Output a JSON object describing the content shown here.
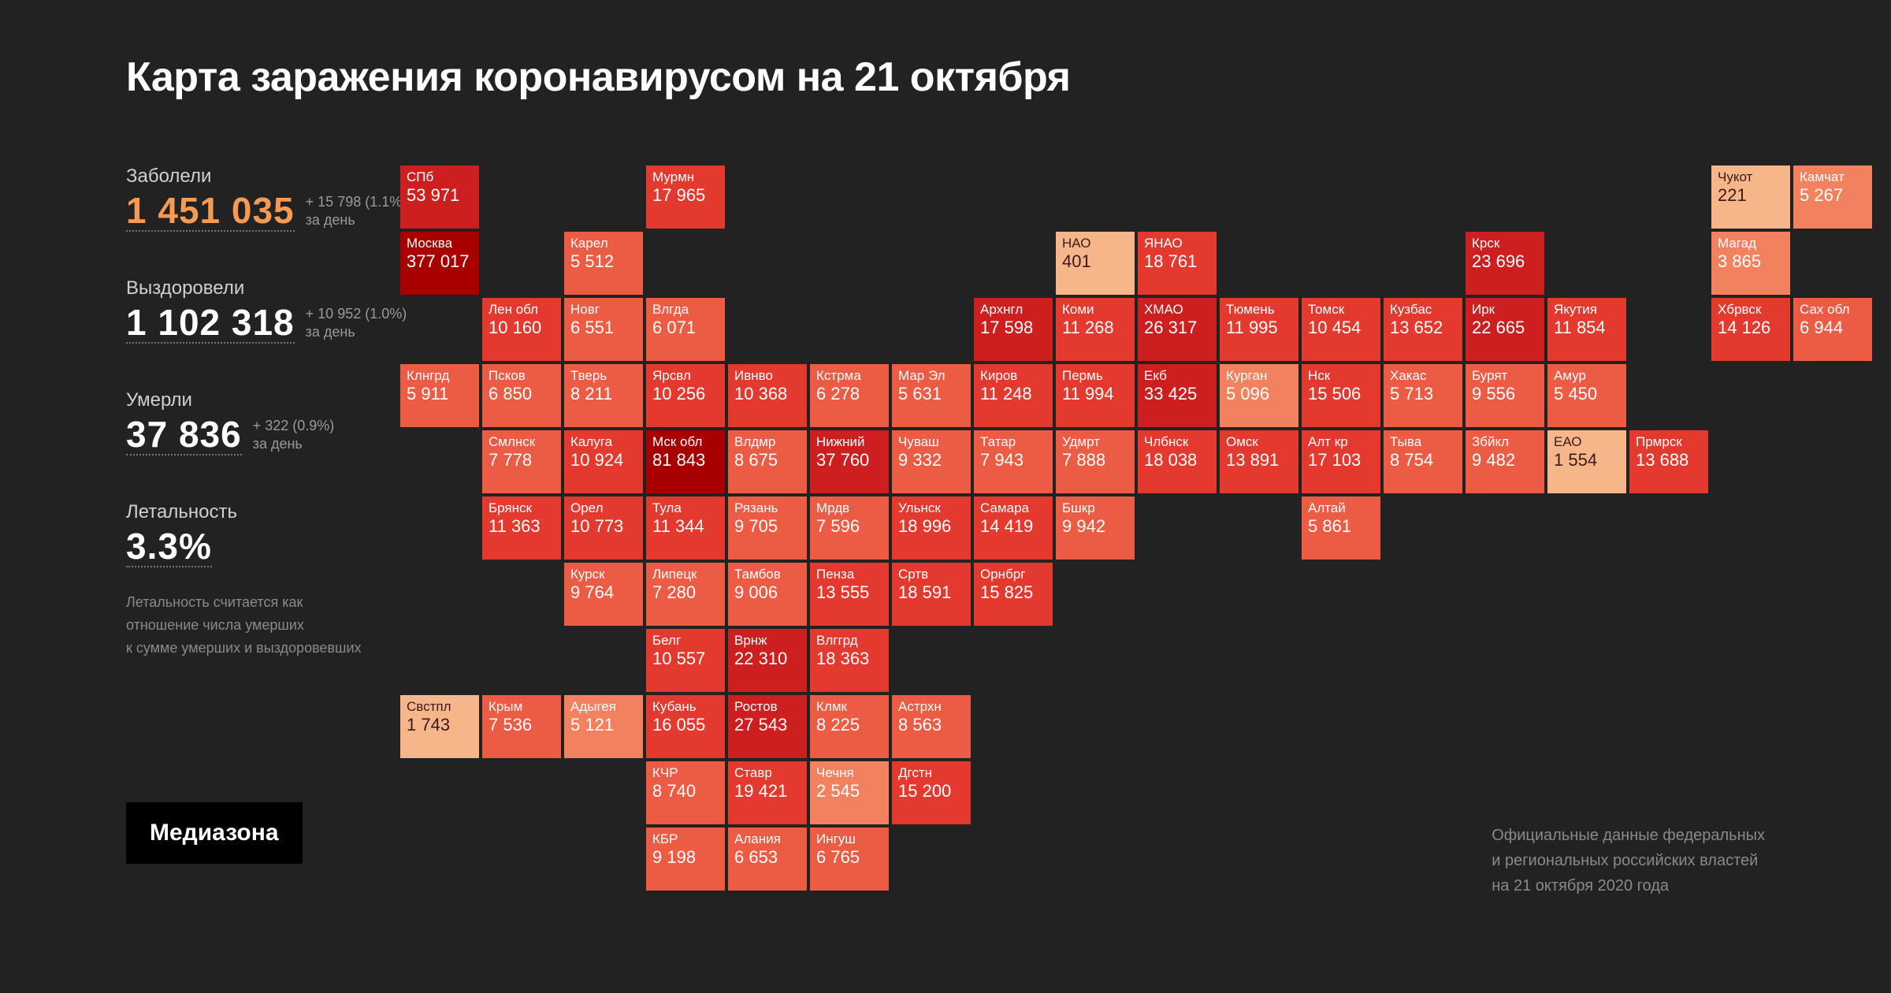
{
  "title": "Карта заражения коронавирусом на 21 октября",
  "stats": {
    "infected": {
      "label": "Заболели",
      "value": "1 451 035",
      "delta": "+ 15 798 (1.1%)",
      "per": "за день"
    },
    "recovered": {
      "label": "Выздоровели",
      "value": "1 102 318",
      "delta": "+ 10 952 (1.0%)",
      "per": "за день"
    },
    "deaths": {
      "label": "Умерли",
      "value": "37 836",
      "delta": "+ 322 (0.9%)",
      "per": "за день"
    },
    "lethality": {
      "label": "Летальность",
      "value": "3.3%"
    },
    "note_l1": "Летальность считается как",
    "note_l2": "отношение числа умерших",
    "note_l3": "к сумме умерших и выздоровевших"
  },
  "brand": "Медиазона",
  "footnote_l1": "Официальные данные федеральных",
  "footnote_l2": "и региональных российских властей",
  "footnote_l3": "на 21 октября 2020 года",
  "colors": {
    "background": "#222222",
    "text": "#ffffff",
    "muted": "#8a8a8a",
    "accent": "#f59a50",
    "cell_text_dark": "#ffffff",
    "cell_text_light": "#3a1a1a"
  },
  "palette": {
    "c1": "#f7b58a",
    "c2": "#f2825f",
    "c3": "#ec5b44",
    "c4": "#e3392e",
    "c5": "#cd1f1f",
    "c6": "#a80000"
  },
  "cells": [
    {
      "name": "СПб",
      "value": "53 971",
      "col": 1,
      "row": 1,
      "color": "c5",
      "txt": "dark"
    },
    {
      "name": "Мурмн",
      "value": "17 965",
      "col": 4,
      "row": 1,
      "color": "c4",
      "txt": "dark"
    },
    {
      "name": "Чукот",
      "value": "221",
      "col": 17,
      "row": 1,
      "color": "c1",
      "txt": "light"
    },
    {
      "name": "Камчат",
      "value": "5 267",
      "col": 18,
      "row": 1,
      "color": "c2",
      "txt": "dark"
    },
    {
      "name": "Москва",
      "value": "377 017",
      "col": 1,
      "row": 2,
      "color": "c6",
      "txt": "dark"
    },
    {
      "name": "Карел",
      "value": "5 512",
      "col": 3,
      "row": 2,
      "color": "c3",
      "txt": "dark"
    },
    {
      "name": "НАО",
      "value": "401",
      "col": 9,
      "row": 2,
      "color": "c1",
      "txt": "light"
    },
    {
      "name": "ЯНАО",
      "value": "18 761",
      "col": 10,
      "row": 2,
      "color": "c4",
      "txt": "dark"
    },
    {
      "name": "Крск",
      "value": "23 696",
      "col": 14,
      "row": 2,
      "color": "c5",
      "txt": "dark"
    },
    {
      "name": "Магад",
      "value": "3 865",
      "col": 17,
      "row": 2,
      "color": "c2",
      "txt": "dark"
    },
    {
      "name": "Лен обл",
      "value": "10 160",
      "col": 2,
      "row": 3,
      "color": "c4",
      "txt": "dark"
    },
    {
      "name": "Новг",
      "value": "6 551",
      "col": 3,
      "row": 3,
      "color": "c3",
      "txt": "dark"
    },
    {
      "name": "Влгда",
      "value": "6 071",
      "col": 4,
      "row": 3,
      "color": "c3",
      "txt": "dark"
    },
    {
      "name": "Архнгл",
      "value": "17 598",
      "col": 8,
      "row": 3,
      "color": "c5",
      "txt": "dark"
    },
    {
      "name": "Коми",
      "value": "11 268",
      "col": 9,
      "row": 3,
      "color": "c4",
      "txt": "dark"
    },
    {
      "name": "ХМАО",
      "value": "26 317",
      "col": 10,
      "row": 3,
      "color": "c5",
      "txt": "dark"
    },
    {
      "name": "Тюмень",
      "value": "11 995",
      "col": 11,
      "row": 3,
      "color": "c4",
      "txt": "dark"
    },
    {
      "name": "Томск",
      "value": "10 454",
      "col": 12,
      "row": 3,
      "color": "c4",
      "txt": "dark"
    },
    {
      "name": "Кузбас",
      "value": "13 652",
      "col": 13,
      "row": 3,
      "color": "c4",
      "txt": "dark"
    },
    {
      "name": "Ирк",
      "value": "22 665",
      "col": 14,
      "row": 3,
      "color": "c5",
      "txt": "dark"
    },
    {
      "name": "Якутия",
      "value": "11 854",
      "col": 15,
      "row": 3,
      "color": "c4",
      "txt": "dark"
    },
    {
      "name": "Хбрвск",
      "value": "14 126",
      "col": 17,
      "row": 3,
      "color": "c4",
      "txt": "dark"
    },
    {
      "name": "Сах обл",
      "value": "6 944",
      "col": 18,
      "row": 3,
      "color": "c3",
      "txt": "dark"
    },
    {
      "name": "Клнгрд",
      "value": "5 911",
      "col": 1,
      "row": 4,
      "color": "c3",
      "txt": "dark"
    },
    {
      "name": "Псков",
      "value": "6 850",
      "col": 2,
      "row": 4,
      "color": "c3",
      "txt": "dark"
    },
    {
      "name": "Тверь",
      "value": "8 211",
      "col": 3,
      "row": 4,
      "color": "c3",
      "txt": "dark"
    },
    {
      "name": "Ярсвл",
      "value": "10 256",
      "col": 4,
      "row": 4,
      "color": "c4",
      "txt": "dark"
    },
    {
      "name": "Ивнво",
      "value": "10 368",
      "col": 5,
      "row": 4,
      "color": "c4",
      "txt": "dark"
    },
    {
      "name": "Кстрма",
      "value": "6 278",
      "col": 6,
      "row": 4,
      "color": "c3",
      "txt": "dark"
    },
    {
      "name": "Мар Эл",
      "value": "5 631",
      "col": 7,
      "row": 4,
      "color": "c3",
      "txt": "dark"
    },
    {
      "name": "Киров",
      "value": "11 248",
      "col": 8,
      "row": 4,
      "color": "c4",
      "txt": "dark"
    },
    {
      "name": "Пермь",
      "value": "11 994",
      "col": 9,
      "row": 4,
      "color": "c4",
      "txt": "dark"
    },
    {
      "name": "Екб",
      "value": "33 425",
      "col": 10,
      "row": 4,
      "color": "c5",
      "txt": "dark"
    },
    {
      "name": "Курган",
      "value": "5 096",
      "col": 11,
      "row": 4,
      "color": "c2",
      "txt": "dark"
    },
    {
      "name": "Нск",
      "value": "15 506",
      "col": 12,
      "row": 4,
      "color": "c4",
      "txt": "dark"
    },
    {
      "name": "Хакас",
      "value": "5 713",
      "col": 13,
      "row": 4,
      "color": "c3",
      "txt": "dark"
    },
    {
      "name": "Бурят",
      "value": "9 556",
      "col": 14,
      "row": 4,
      "color": "c3",
      "txt": "dark"
    },
    {
      "name": "Амур",
      "value": "5 450",
      "col": 15,
      "row": 4,
      "color": "c3",
      "txt": "dark"
    },
    {
      "name": "Смлнск",
      "value": "7 778",
      "col": 2,
      "row": 5,
      "color": "c3",
      "txt": "dark"
    },
    {
      "name": "Калуга",
      "value": "10 924",
      "col": 3,
      "row": 5,
      "color": "c4",
      "txt": "dark"
    },
    {
      "name": "Мск обл",
      "value": "81 843",
      "col": 4,
      "row": 5,
      "color": "c6",
      "txt": "dark"
    },
    {
      "name": "Влдмр",
      "value": "8 675",
      "col": 5,
      "row": 5,
      "color": "c3",
      "txt": "dark"
    },
    {
      "name": "Нижний",
      "value": "37 760",
      "col": 6,
      "row": 5,
      "color": "c5",
      "txt": "dark"
    },
    {
      "name": "Чуваш",
      "value": "9 332",
      "col": 7,
      "row": 5,
      "color": "c3",
      "txt": "dark"
    },
    {
      "name": "Татар",
      "value": "7 943",
      "col": 8,
      "row": 5,
      "color": "c3",
      "txt": "dark"
    },
    {
      "name": "Удмрт",
      "value": "7 888",
      "col": 9,
      "row": 5,
      "color": "c3",
      "txt": "dark"
    },
    {
      "name": "Члбнск",
      "value": "18 038",
      "col": 10,
      "row": 5,
      "color": "c4",
      "txt": "dark"
    },
    {
      "name": "Омск",
      "value": "13 891",
      "col": 11,
      "row": 5,
      "color": "c4",
      "txt": "dark"
    },
    {
      "name": "Алт кр",
      "value": "17 103",
      "col": 12,
      "row": 5,
      "color": "c4",
      "txt": "dark"
    },
    {
      "name": "Тыва",
      "value": "8 754",
      "col": 13,
      "row": 5,
      "color": "c3",
      "txt": "dark"
    },
    {
      "name": "Збйкл",
      "value": "9 482",
      "col": 14,
      "row": 5,
      "color": "c3",
      "txt": "dark"
    },
    {
      "name": "ЕАО",
      "value": "1 554",
      "col": 15,
      "row": 5,
      "color": "c1",
      "txt": "light"
    },
    {
      "name": "Прмрск",
      "value": "13 688",
      "col": 16,
      "row": 5,
      "color": "c4",
      "txt": "dark"
    },
    {
      "name": "Брянск",
      "value": "11 363",
      "col": 2,
      "row": 6,
      "color": "c4",
      "txt": "dark"
    },
    {
      "name": "Орел",
      "value": "10 773",
      "col": 3,
      "row": 6,
      "color": "c4",
      "txt": "dark"
    },
    {
      "name": "Тула",
      "value": "11 344",
      "col": 4,
      "row": 6,
      "color": "c4",
      "txt": "dark"
    },
    {
      "name": "Рязань",
      "value": "9 705",
      "col": 5,
      "row": 6,
      "color": "c3",
      "txt": "dark"
    },
    {
      "name": "Мрдв",
      "value": "7 596",
      "col": 6,
      "row": 6,
      "color": "c3",
      "txt": "dark"
    },
    {
      "name": "Ульнск",
      "value": "18 996",
      "col": 7,
      "row": 6,
      "color": "c4",
      "txt": "dark"
    },
    {
      "name": "Самара",
      "value": "14 419",
      "col": 8,
      "row": 6,
      "color": "c4",
      "txt": "dark"
    },
    {
      "name": "Бшкр",
      "value": "9 942",
      "col": 9,
      "row": 6,
      "color": "c3",
      "txt": "dark"
    },
    {
      "name": "Алтай",
      "value": "5 861",
      "col": 12,
      "row": 6,
      "color": "c3",
      "txt": "dark"
    },
    {
      "name": "Курск",
      "value": "9 764",
      "col": 3,
      "row": 7,
      "color": "c3",
      "txt": "dark"
    },
    {
      "name": "Липецк",
      "value": "7 280",
      "col": 4,
      "row": 7,
      "color": "c3",
      "txt": "dark"
    },
    {
      "name": "Тамбов",
      "value": "9 006",
      "col": 5,
      "row": 7,
      "color": "c3",
      "txt": "dark"
    },
    {
      "name": "Пенза",
      "value": "13 555",
      "col": 6,
      "row": 7,
      "color": "c4",
      "txt": "dark"
    },
    {
      "name": "Сртв",
      "value": "18 591",
      "col": 7,
      "row": 7,
      "color": "c4",
      "txt": "dark"
    },
    {
      "name": "Орнбрг",
      "value": "15 825",
      "col": 8,
      "row": 7,
      "color": "c4",
      "txt": "dark"
    },
    {
      "name": "Белг",
      "value": "10 557",
      "col": 4,
      "row": 8,
      "color": "c4",
      "txt": "dark"
    },
    {
      "name": "Врнж",
      "value": "22 310",
      "col": 5,
      "row": 8,
      "color": "c5",
      "txt": "dark"
    },
    {
      "name": "Влггрд",
      "value": "18 363",
      "col": 6,
      "row": 8,
      "color": "c4",
      "txt": "dark"
    },
    {
      "name": "Свстпл",
      "value": "1 743",
      "col": 1,
      "row": 9,
      "color": "c1",
      "txt": "light"
    },
    {
      "name": "Крым",
      "value": "7 536",
      "col": 2,
      "row": 9,
      "color": "c3",
      "txt": "dark"
    },
    {
      "name": "Адыгея",
      "value": "5 121",
      "col": 3,
      "row": 9,
      "color": "c2",
      "txt": "dark"
    },
    {
      "name": "Кубань",
      "value": "16 055",
      "col": 4,
      "row": 9,
      "color": "c4",
      "txt": "dark"
    },
    {
      "name": "Ростов",
      "value": "27 543",
      "col": 5,
      "row": 9,
      "color": "c5",
      "txt": "dark"
    },
    {
      "name": "Клмк",
      "value": "8 225",
      "col": 6,
      "row": 9,
      "color": "c3",
      "txt": "dark"
    },
    {
      "name": "Астрхн",
      "value": "8 563",
      "col": 7,
      "row": 9,
      "color": "c3",
      "txt": "dark"
    },
    {
      "name": "КЧР",
      "value": "8 740",
      "col": 4,
      "row": 10,
      "color": "c3",
      "txt": "dark"
    },
    {
      "name": "Ставр",
      "value": "19 421",
      "col": 5,
      "row": 10,
      "color": "c4",
      "txt": "dark"
    },
    {
      "name": "Чечня",
      "value": "2 545",
      "col": 6,
      "row": 10,
      "color": "c2",
      "txt": "dark"
    },
    {
      "name": "Дгстн",
      "value": "15 200",
      "col": 7,
      "row": 10,
      "color": "c4",
      "txt": "dark"
    },
    {
      "name": "КБР",
      "value": "9 198",
      "col": 4,
      "row": 11,
      "color": "c3",
      "txt": "dark"
    },
    {
      "name": "Алания",
      "value": "6 653",
      "col": 5,
      "row": 11,
      "color": "c3",
      "txt": "dark"
    },
    {
      "name": "Ингуш",
      "value": "6 765",
      "col": 6,
      "row": 11,
      "color": "c3",
      "txt": "dark"
    }
  ]
}
